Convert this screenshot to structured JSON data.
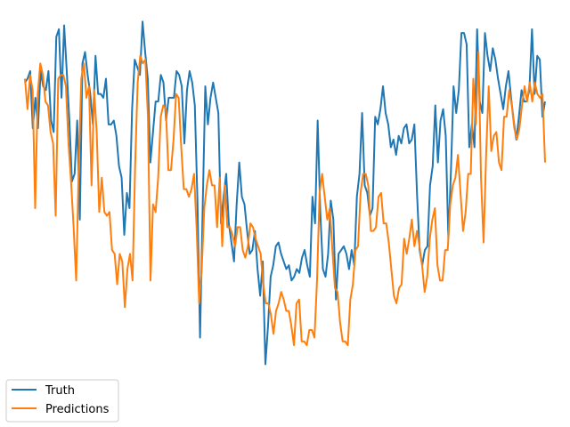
{
  "chart_data": {
    "type": "line",
    "title": "",
    "xlabel": "",
    "ylabel": "",
    "grid": false,
    "axes_visible": false,
    "legend_position": "lower-left",
    "xlim": [
      0,
      156
    ],
    "ylim": [
      0,
      100
    ],
    "series": [
      {
        "name": "Truth",
        "color": "#1f77b4",
        "values": [
          83,
          84,
          86,
          71,
          79,
          71,
          86,
          82,
          81,
          86,
          73,
          70,
          95,
          97,
          79,
          98,
          86,
          73,
          57,
          59,
          73,
          47,
          88,
          91,
          85,
          80,
          72,
          90,
          80,
          80,
          79,
          84,
          72,
          72,
          73,
          69,
          61,
          58,
          43,
          54,
          50,
          76,
          89,
          87,
          85,
          99,
          91,
          84,
          62,
          70,
          78,
          78,
          85,
          83,
          73,
          79,
          79,
          79,
          86,
          85,
          82,
          67,
          81,
          86,
          83,
          77,
          52,
          16,
          50,
          82,
          72,
          79,
          83,
          79,
          75,
          46,
          53,
          59,
          46,
          41,
          36,
          51,
          62,
          53,
          51,
          44,
          38,
          39,
          44,
          34,
          27,
          36,
          9,
          19,
          32,
          35,
          40,
          41,
          38,
          36,
          34,
          35,
          31,
          32,
          34,
          33,
          37,
          39,
          35,
          32,
          53,
          46,
          73,
          49,
          34,
          32,
          38,
          52,
          47,
          26,
          38,
          39,
          40,
          38,
          34,
          39,
          35,
          53,
          59,
          75,
          56,
          54,
          48,
          50,
          74,
          72,
          76,
          82,
          75,
          72,
          66,
          68,
          64,
          69,
          67,
          71,
          72,
          67,
          68,
          72,
          54,
          39,
          35,
          39,
          40,
          56,
          61,
          77,
          62,
          73,
          76,
          69,
          42,
          60,
          82,
          75,
          81,
          96,
          96,
          93,
          66,
          72,
          66,
          97,
          78,
          75,
          96,
          90,
          86,
          92,
          89,
          84,
          80,
          76,
          82,
          86,
          79,
          73,
          68,
          74,
          81,
          78,
          78,
          81,
          97,
          80,
          90,
          89,
          74,
          78
        ]
      },
      {
        "name": "Predictions",
        "color": "#ff7f0e",
        "values": [
          84,
          76,
          85,
          81,
          50,
          80,
          88,
          85,
          78,
          77,
          70,
          67,
          48,
          84,
          85,
          85,
          82,
          67,
          57,
          45,
          31,
          61,
          84,
          88,
          79,
          82,
          56,
          81,
          70,
          49,
          58,
          49,
          48,
          49,
          39,
          38,
          30,
          38,
          36,
          24,
          34,
          38,
          31,
          61,
          83,
          90,
          88,
          89,
          74,
          31,
          51,
          49,
          58,
          74,
          77,
          76,
          60,
          60,
          68,
          80,
          79,
          66,
          55,
          55,
          53,
          55,
          59,
          45,
          25,
          34,
          50,
          56,
          60,
          56,
          56,
          45,
          58,
          40,
          56,
          45,
          45,
          43,
          40,
          45,
          45,
          39,
          37,
          40,
          46,
          45,
          42,
          40,
          38,
          30,
          25,
          25,
          22,
          17,
          23,
          25,
          28,
          26,
          23,
          23,
          19,
          14,
          25,
          26,
          15,
          15,
          14,
          18,
          18,
          16,
          31,
          54,
          59,
          53,
          47,
          50,
          39,
          29,
          28,
          20,
          15,
          15,
          14,
          26,
          30,
          39,
          40,
          54,
          59,
          59,
          56,
          44,
          44,
          45,
          53,
          54,
          46,
          46,
          41,
          34,
          27,
          25,
          29,
          30,
          42,
          38,
          42,
          47,
          40,
          44,
          40,
          35,
          28,
          32,
          42,
          47,
          50,
          35,
          31,
          31,
          39,
          39,
          51,
          56,
          58,
          64,
          54,
          44,
          49,
          59,
          59,
          84,
          72,
          91,
          58,
          41,
          64,
          82,
          65,
          69,
          70,
          62,
          60,
          74,
          74,
          81,
          77,
          71,
          68,
          71,
          77,
          82,
          78,
          83,
          78,
          83,
          80,
          79,
          80,
          62
        ]
      }
    ]
  }
}
